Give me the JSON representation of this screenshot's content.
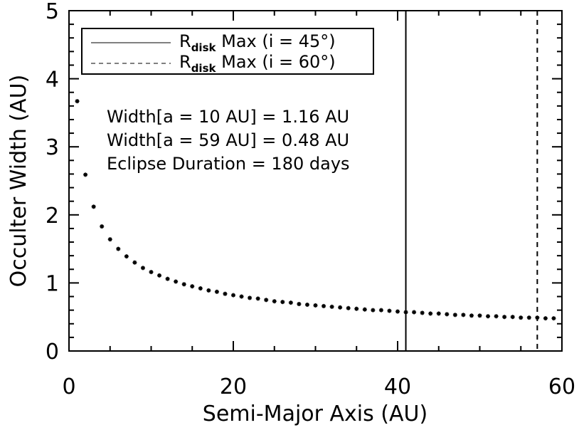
{
  "chart_data": {
    "type": "scatter",
    "title": "",
    "xlabel": "Semi-Major Axis (AU)",
    "ylabel": "Occulter Width (AU)",
    "xlim": [
      0,
      60
    ],
    "ylim": [
      0,
      5
    ],
    "xticks": [
      0,
      20,
      40,
      60
    ],
    "xtick_labels": [
      "0",
      "20",
      "40",
      "60"
    ],
    "yticks": [
      0,
      1,
      2,
      3,
      4,
      5
    ],
    "ytick_labels": [
      "0",
      "1",
      "2",
      "3",
      "4",
      "5"
    ],
    "grid": false,
    "marker": "asterisk",
    "series": [
      {
        "x": [
          1,
          2,
          3,
          4,
          5,
          6,
          7,
          8,
          9,
          10,
          11,
          12,
          13,
          14,
          15,
          16,
          17,
          18,
          19,
          20,
          21,
          22,
          23,
          24,
          25,
          26,
          27,
          28,
          29,
          30,
          31,
          32,
          33,
          34,
          35,
          36,
          37,
          38,
          39,
          40,
          41,
          42,
          43,
          44,
          45,
          46,
          47,
          48,
          49,
          50,
          51,
          52,
          53,
          54,
          55,
          56,
          57,
          58,
          59
        ],
        "y": [
          3.67,
          2.59,
          2.12,
          1.83,
          1.64,
          1.5,
          1.39,
          1.3,
          1.22,
          1.16,
          1.11,
          1.06,
          1.02,
          0.98,
          0.95,
          0.92,
          0.89,
          0.87,
          0.84,
          0.82,
          0.8,
          0.78,
          0.77,
          0.75,
          0.73,
          0.72,
          0.71,
          0.69,
          0.68,
          0.67,
          0.66,
          0.65,
          0.64,
          0.63,
          0.62,
          0.61,
          0.6,
          0.6,
          0.59,
          0.58,
          0.57,
          0.57,
          0.56,
          0.55,
          0.55,
          0.54,
          0.53,
          0.53,
          0.52,
          0.52,
          0.51,
          0.51,
          0.5,
          0.5,
          0.49,
          0.49,
          0.49,
          0.48,
          0.48
        ]
      }
    ],
    "vlines": [
      {
        "x": 41,
        "style": "solid"
      },
      {
        "x": 57,
        "style": "dashed"
      }
    ],
    "legend": {
      "placement": "top-left",
      "entries": [
        {
          "style": "solid",
          "label_main": "R",
          "label_sub": "disk",
          "label_rest": " Max (i = 45°)"
        },
        {
          "style": "dashed",
          "label_main": "R",
          "label_sub": "disk",
          "label_rest": " Max (i = 60°)"
        }
      ]
    },
    "annotations": [
      "Width[a = 10 AU] = 1.16 AU",
      "Width[a = 59 AU] = 0.48 AU",
      "Eclipse Duration = 180 days"
    ]
  }
}
